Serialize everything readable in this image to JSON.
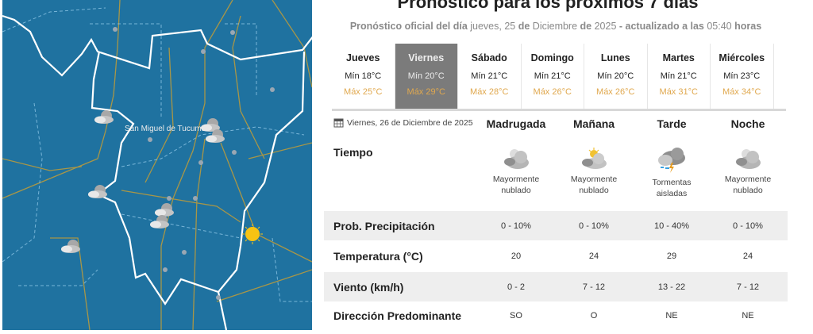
{
  "map": {
    "city_label": "San Miguel de Tucumán",
    "background": "#1f72a0",
    "icons": [
      "cloudy-icon",
      "cloudy-icon",
      "cloudy-icon",
      "cloudy-icon",
      "cloudy-icon",
      "cloudy-icon",
      "cloudy-icon",
      "sun-icon"
    ]
  },
  "header": {
    "title": "Pronóstico para los próximos 7 días",
    "subtitle": {
      "p1": "Pronóstico oficial del día",
      "p2": " jueves, 25 ",
      "p3": "de",
      "p4": " Diciembre ",
      "p5": "de",
      "p6": " 2025 ",
      "p7": "- actualizado a las",
      "p8": " 05:40 ",
      "p9": "horas"
    }
  },
  "days": [
    {
      "name": "Jueves",
      "min": "Mín 18°C",
      "max": "Máx 25°C"
    },
    {
      "name": "Viernes",
      "min": "Mín 20°C",
      "max": "Máx 29°C",
      "selected": true
    },
    {
      "name": "Sábado",
      "min": "Mín 21°C",
      "max": "Máx 28°C"
    },
    {
      "name": "Domingo",
      "min": "Mín 21°C",
      "max": "Máx 26°C"
    },
    {
      "name": "Lunes",
      "min": "Mín 20°C",
      "max": "Máx 26°C"
    },
    {
      "name": "Martes",
      "min": "Mín 21°C",
      "max": "Máx 31°C"
    },
    {
      "name": "Miércoles",
      "min": "Mín 23°C",
      "max": "Máx 34°C"
    }
  ],
  "detail": {
    "date": "Viernes, 26 de Diciembre de 2025",
    "periods": [
      "Madrugada",
      "Mañana",
      "Tarde",
      "Noche"
    ],
    "tiempo_label": "Tiempo",
    "weather": [
      {
        "icon": "cloudy-night-icon",
        "l1": "Mayormente",
        "l2": "nublado"
      },
      {
        "icon": "cloudy-sun-icon",
        "l1": "Mayormente",
        "l2": "nublado"
      },
      {
        "icon": "thunderstorm-icon",
        "l1": "Tormentas",
        "l2": "aisladas"
      },
      {
        "icon": "cloudy-night-icon",
        "l1": "Mayormente",
        "l2": "nublado"
      }
    ],
    "rows": [
      {
        "label": "Prob. Precipitación",
        "values": [
          "0 - 10%",
          "0 - 10%",
          "10 - 40%",
          "0 - 10%"
        ]
      },
      {
        "label": "Temperatura (°C)",
        "values": [
          "20",
          "24",
          "29",
          "24"
        ]
      },
      {
        "label": "Viento (km/h)",
        "values": [
          "0 - 2",
          "7 - 12",
          "13 - 22",
          "7 - 12"
        ]
      },
      {
        "label": "Dirección Predominante",
        "values": [
          "SO",
          "O",
          "NE",
          "NE"
        ]
      }
    ]
  },
  "colors": {
    "selected_day": "#7b7b7b",
    "max_temp": "#e0a84e",
    "row_stripe": "#eeeeee"
  }
}
